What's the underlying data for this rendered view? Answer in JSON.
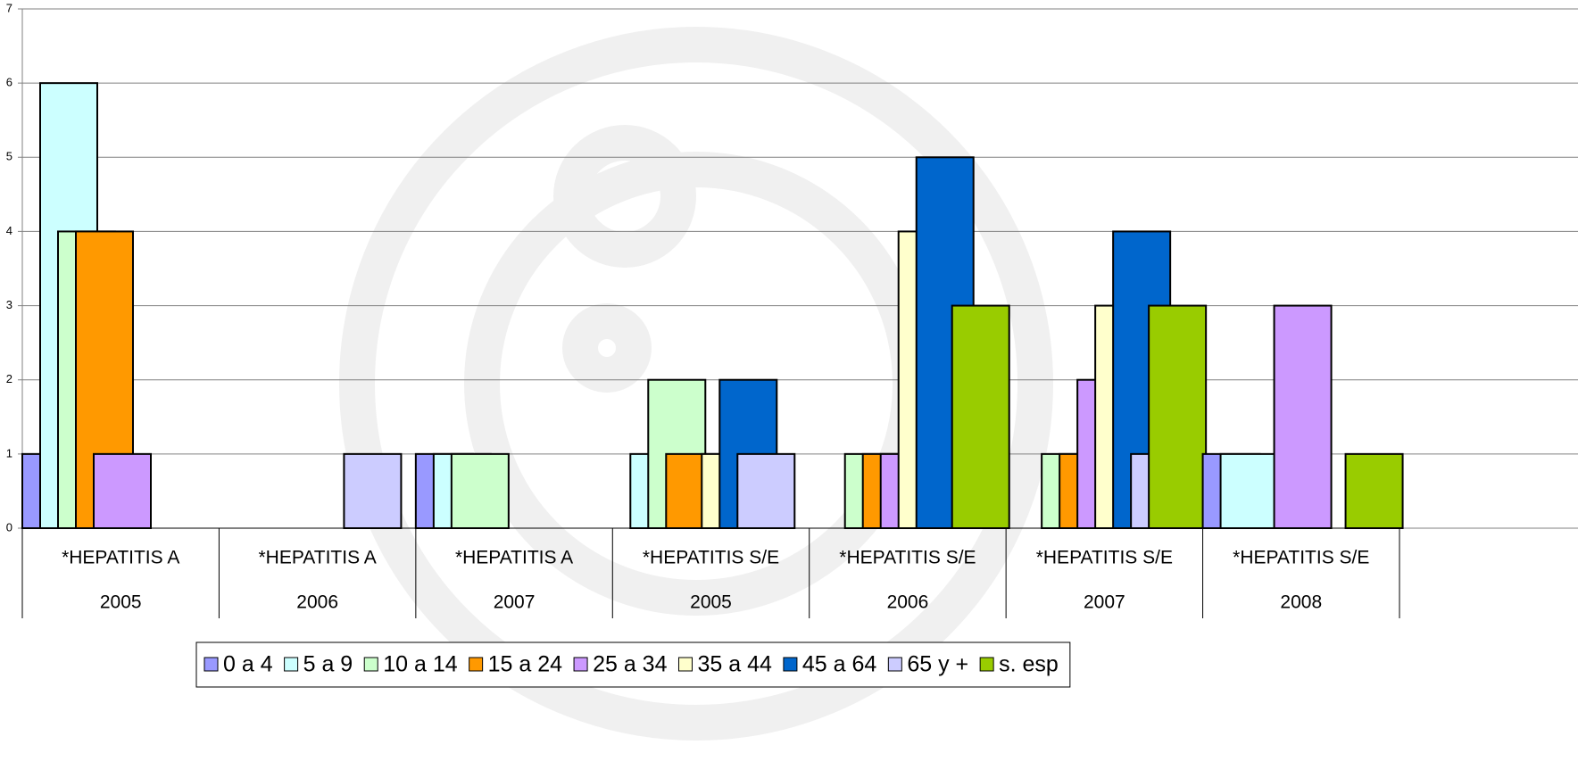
{
  "chart_data": {
    "type": "bar",
    "categories": [
      {
        "name": "*HEPATITIS A",
        "year": "2005"
      },
      {
        "name": "*HEPATITIS A",
        "year": "2006"
      },
      {
        "name": "*HEPATITIS A",
        "year": "2007"
      },
      {
        "name": "*HEPATITIS S/E",
        "year": "2005"
      },
      {
        "name": "*HEPATITIS S/E",
        "year": "2006"
      },
      {
        "name": "*HEPATITIS S/E",
        "year": "2007"
      },
      {
        "name": "*HEPATITIS S/E",
        "year": "2008"
      }
    ],
    "series": [
      {
        "name": "0 a 4",
        "color": "#9999ff",
        "values": [
          1,
          0,
          1,
          0,
          0,
          0,
          1
        ]
      },
      {
        "name": "5 a 9",
        "color": "#ccffff",
        "values": [
          6,
          0,
          1,
          1,
          0,
          0,
          1
        ]
      },
      {
        "name": "10 a 14",
        "color": "#ccffcc",
        "values": [
          4,
          0,
          1,
          2,
          1,
          1,
          0
        ]
      },
      {
        "name": "15 a 24",
        "color": "#ff9900",
        "values": [
          4,
          0,
          0,
          1,
          1,
          1,
          0
        ]
      },
      {
        "name": "25 a 34",
        "color": "#cc99ff",
        "values": [
          1,
          0,
          0,
          0,
          1,
          2,
          3
        ]
      },
      {
        "name": "35 a 44",
        "color": "#ffffcc",
        "values": [
          0,
          0,
          0,
          1,
          4,
          3,
          0
        ]
      },
      {
        "name": "45 a 64",
        "color": "#0066cc",
        "values": [
          0,
          0,
          0,
          2,
          5,
          4,
          0
        ]
      },
      {
        "name": "65 y +",
        "color": "#ccccff",
        "values": [
          0,
          1,
          0,
          1,
          0,
          1,
          0
        ]
      },
      {
        "name": "s. esp",
        "color": "#99cc00",
        "values": [
          0,
          0,
          0,
          0,
          3,
          3,
          1
        ]
      }
    ],
    "ylim": [
      0,
      7
    ],
    "yticks": [
      0,
      1,
      2,
      3,
      4,
      5,
      6,
      7
    ],
    "grid": true,
    "legend": "bottom"
  }
}
